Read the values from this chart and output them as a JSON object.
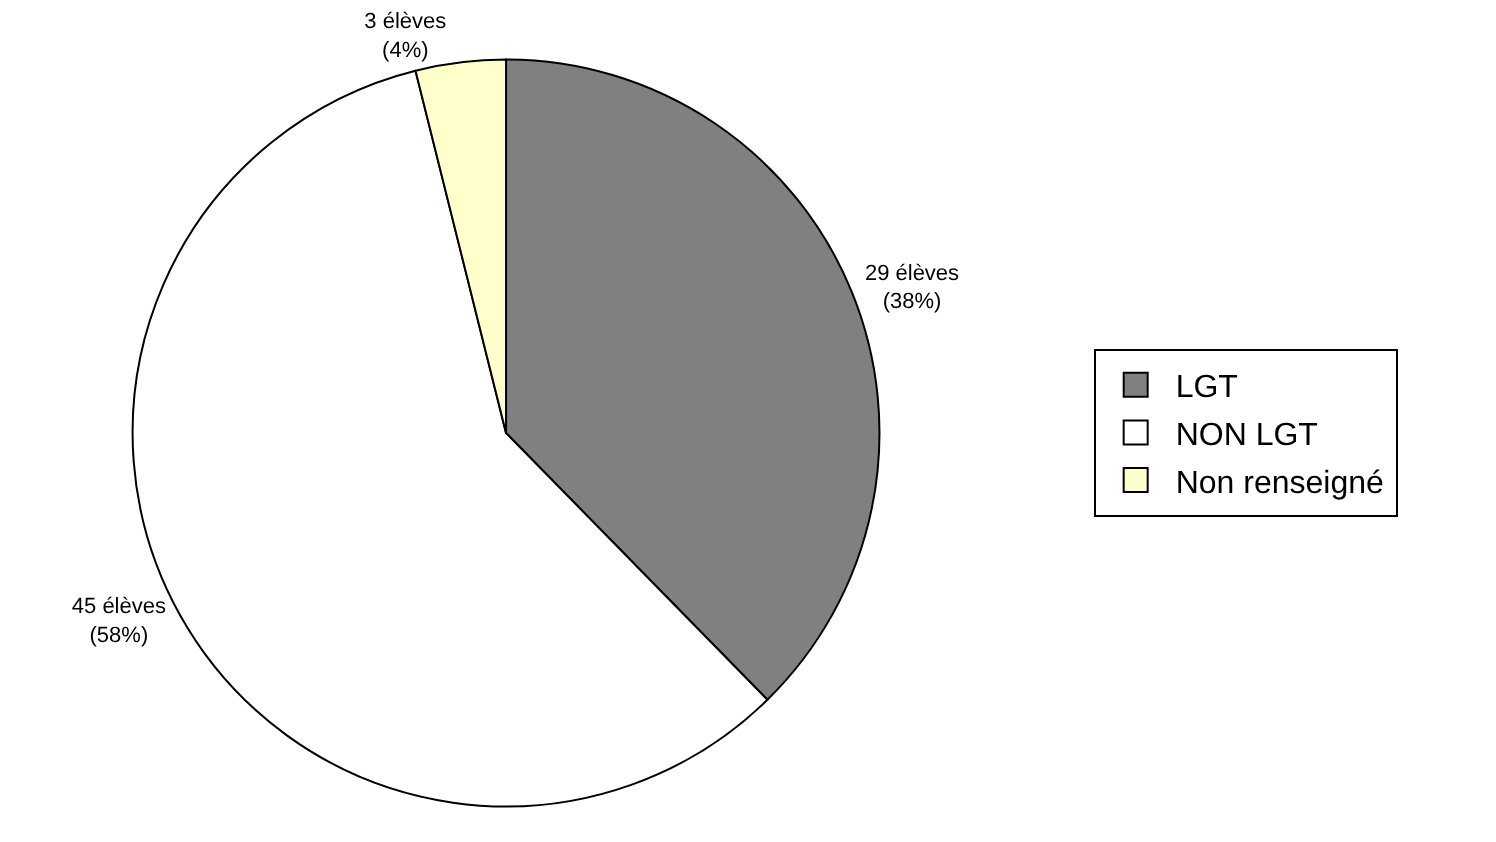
{
  "chart_data": {
    "type": "pie",
    "categories": [
      "LGT",
      "NON LGT",
      "Non renseigné"
    ],
    "values": [
      29,
      45,
      3
    ],
    "value_labels": [
      "29 élèves\n(38%)",
      "45 élèves\n(58%)",
      "3 élèves\n(4%)"
    ],
    "colors": [
      "#808080",
      "#ffffff",
      "#ffffcc"
    ],
    "legend": "right"
  }
}
